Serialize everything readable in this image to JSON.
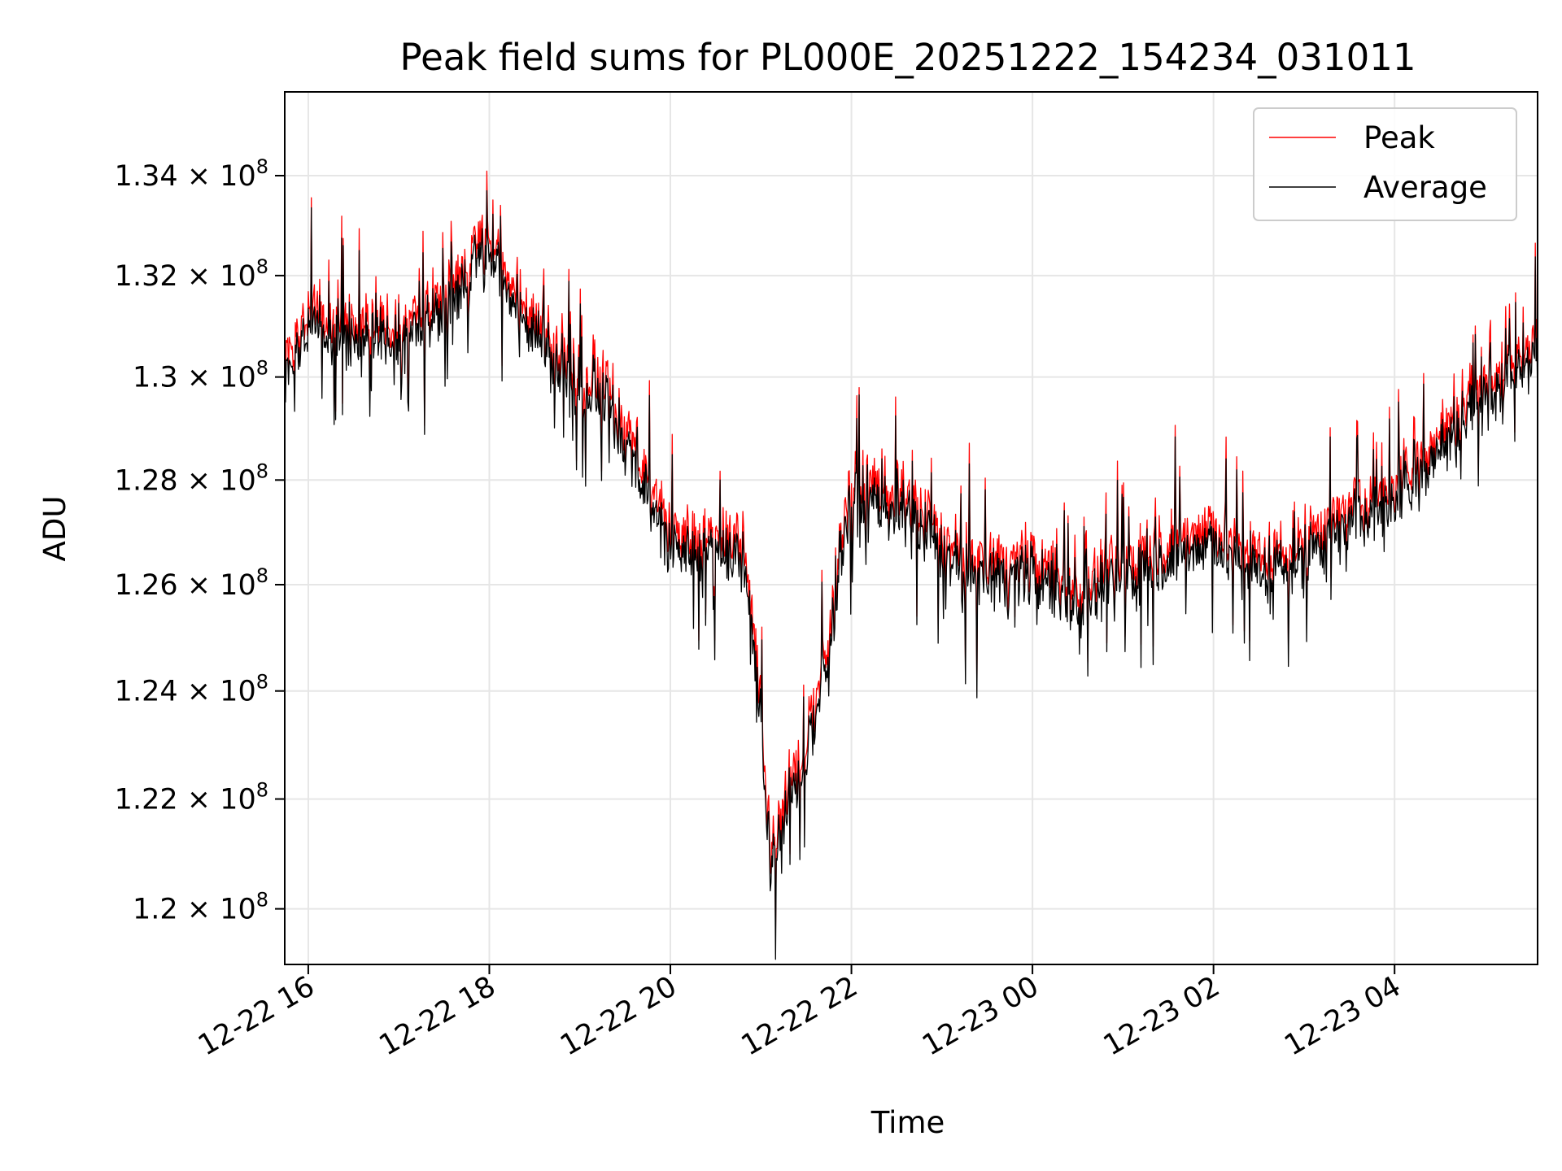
{
  "chart_data": {
    "type": "line",
    "title": "Peak field sums for PL000E_20251222_154234_031011",
    "xlabel": "Time",
    "ylabel": "ADU",
    "x_range_hours": [
      15.74,
      29.58
    ],
    "x_ticks": [
      {
        "label": "12-22 16",
        "hour": 16
      },
      {
        "label": "12-22 18",
        "hour": 18
      },
      {
        "label": "12-22 20",
        "hour": 20
      },
      {
        "label": "12-22 22",
        "hour": 22
      },
      {
        "label": "12-23 00",
        "hour": 24
      },
      {
        "label": "12-23 02",
        "hour": 26
      },
      {
        "label": "12-23 04",
        "hour": 28
      }
    ],
    "y_scale": "log",
    "ylim": [
      119000000,
      135700000
    ],
    "y_ticks": [
      {
        "mantissa": "1.2",
        "exponent": "8",
        "value": 120000000
      },
      {
        "mantissa": "1.22",
        "exponent": "8",
        "value": 122000000
      },
      {
        "mantissa": "1.24",
        "exponent": "8",
        "value": 124000000
      },
      {
        "mantissa": "1.26",
        "exponent": "8",
        "value": 126000000
      },
      {
        "mantissa": "1.28",
        "exponent": "8",
        "value": 128000000
      },
      {
        "mantissa": "1.3",
        "exponent": "8",
        "value": 130000000
      },
      {
        "mantissa": "1.32",
        "exponent": "8",
        "value": 132000000
      },
      {
        "mantissa": "1.34",
        "exponent": "8",
        "value": 134000000
      }
    ],
    "times_symbol": "×",
    "grid": true,
    "legend_position": "upper-right",
    "trend_hours": [
      15.74,
      16.0,
      16.5,
      17.0,
      17.5,
      17.9,
      18.3,
      18.7,
      19.0,
      19.3,
      19.6,
      20.0,
      20.4,
      20.8,
      20.95,
      21.1,
      21.5,
      21.75,
      21.95,
      22.3,
      22.8,
      23.3,
      24.0,
      24.5,
      25.0,
      25.5,
      26.0,
      26.5,
      27.0,
      27.5,
      28.0,
      28.5,
      29.0,
      29.3,
      29.58
    ],
    "trend_values": [
      130300000,
      131000000,
      130700000,
      130700000,
      131300000,
      132500000,
      131500000,
      130300000,
      129600000,
      129500000,
      128300000,
      126700000,
      126600000,
      126600000,
      124600000,
      120800000,
      122700000,
      124600000,
      127500000,
      127600000,
      127000000,
      126100000,
      126200000,
      125600000,
      126200000,
      126500000,
      126800000,
      126200000,
      126500000,
      127200000,
      127600000,
      128600000,
      129700000,
      129800000,
      130700000
    ],
    "sample_count": 1650,
    "noise_amplitude_adu": 550000,
    "spike_amplitude_adu": 1300000,
    "series": [
      {
        "name": "Peak",
        "color": "#ff0000",
        "offset_adu": 350000
      },
      {
        "name": "Average",
        "color": "#000000",
        "offset_adu": 0
      }
    ]
  }
}
